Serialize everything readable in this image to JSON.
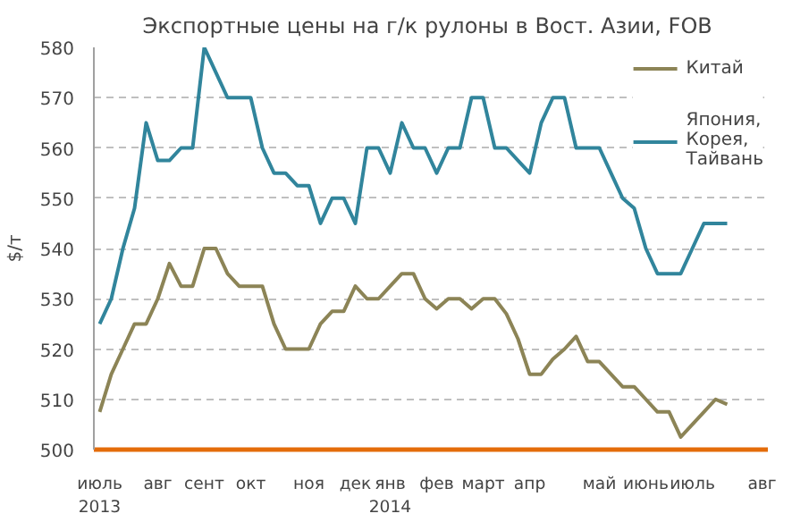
{
  "chart_data": {
    "type": "line",
    "title": "Экспортные цены на г/к рулоны в Вост. Азии,  FOB",
    "ylabel": "$/т",
    "categories": [
      "июль\n2013",
      null,
      null,
      null,
      null,
      "авг",
      null,
      null,
      null,
      "сент",
      null,
      null,
      null,
      "окт",
      null,
      null,
      null,
      null,
      "ноя",
      null,
      null,
      null,
      "дек",
      null,
      null,
      "янв\n2014",
      null,
      null,
      null,
      "фев",
      null,
      null,
      null,
      "март",
      null,
      null,
      null,
      "апр",
      null,
      null,
      null,
      null,
      null,
      "май",
      null,
      null,
      null,
      "июнь",
      null,
      null,
      null,
      "июль",
      null,
      null,
      null,
      null,
      null,
      "авг"
    ],
    "series": [
      {
        "name": "Китай",
        "color": "#8c8456",
        "values": [
          507.5,
          515,
          520,
          525,
          525,
          530,
          537,
          532.5,
          532.5,
          540,
          540,
          535,
          532.5,
          532.5,
          532.5,
          525,
          520,
          520,
          520,
          525,
          527.5,
          527.5,
          532.5,
          530,
          530,
          532.5,
          535,
          535,
          530,
          528,
          530,
          530,
          528,
          530,
          530,
          527,
          522,
          515,
          515,
          518,
          520,
          522.5,
          517.5,
          517.5,
          515,
          512.5,
          512.5,
          510,
          507.5,
          507.5,
          502.5,
          505,
          507.5,
          510,
          509,
          null,
          null,
          null
        ]
      },
      {
        "name": "Япония,\nКорея,\nТайвань",
        "color": "#31859c",
        "values": [
          525,
          530,
          540,
          548,
          565,
          557.5,
          557.5,
          560,
          560,
          580,
          575,
          570,
          570,
          570,
          560,
          555,
          555,
          552.5,
          552.5,
          545,
          550,
          550,
          545,
          560,
          560,
          555,
          565,
          560,
          560,
          555,
          560,
          560,
          570,
          570,
          560,
          560,
          557.5,
          555,
          565,
          570,
          570,
          560,
          560,
          560,
          555,
          550,
          548,
          540,
          535,
          535,
          535,
          540,
          545,
          545,
          545,
          null,
          null,
          null
        ]
      }
    ],
    "ylim": [
      500,
      580
    ],
    "yticks": [
      500,
      510,
      520,
      530,
      540,
      550,
      560,
      570,
      580
    ],
    "grid": "y",
    "legend": "top right",
    "line_style": "solid",
    "marker": "none"
  }
}
